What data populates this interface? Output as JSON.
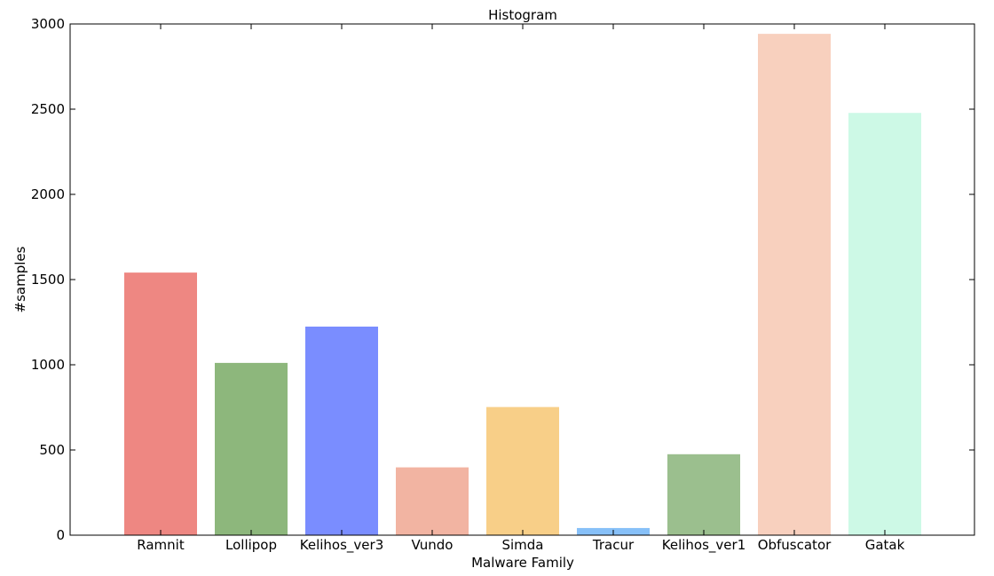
{
  "chart_data": {
    "type": "bar",
    "title": "Histogram",
    "xlabel": "Malware Family",
    "ylabel": "#samples",
    "categories": [
      "Ramnit",
      "Lollipop",
      "Kelihos_ver3",
      "Vundo",
      "Simda",
      "Tracur",
      "Kelihos_ver1",
      "Obfuscator",
      "Gatak"
    ],
    "values": [
      1541,
      1011,
      1224,
      398,
      752,
      42,
      475,
      2942,
      2478
    ],
    "colors": [
      "#ee8782",
      "#8db77c",
      "#7a8dff",
      "#f2b4a2",
      "#f8cf88",
      "#87c0f8",
      "#9bbf8e",
      "#f8d0be",
      "#cdf9e6"
    ],
    "ylim": [
      0,
      3000
    ],
    "yticks": [
      0,
      500,
      1000,
      1500,
      2000,
      2500,
      3000
    ],
    "grid": false,
    "legend": "none"
  }
}
